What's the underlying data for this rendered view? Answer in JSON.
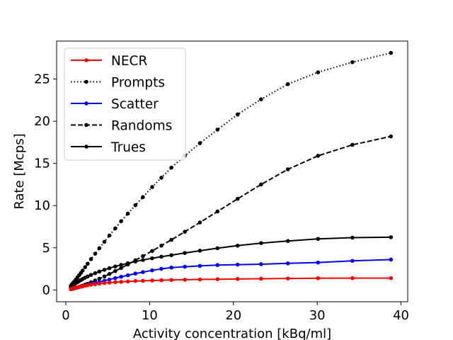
{
  "chart_data": {
    "type": "line",
    "title": "",
    "xlabel": "Activity concentration [kBq/ml]",
    "ylabel": "Rate [Mcps]",
    "xlim": [
      -1.1,
      40.8
    ],
    "ylim": [
      -1.4,
      29.5
    ],
    "xticks": [
      "0",
      "10",
      "20",
      "30",
      "40"
    ],
    "yticks": [
      "0",
      "5",
      "10",
      "15",
      "20",
      "25"
    ],
    "grid": false,
    "legend_position": "top-left",
    "x": [
      0.6,
      0.7,
      0.8,
      0.9,
      1.0,
      1.2,
      1.4,
      1.6,
      1.8,
      2.0,
      2.3,
      2.6,
      3.0,
      3.5,
      4.0,
      4.6,
      5.2,
      5.9,
      6.6,
      7.4,
      8.3,
      9.2,
      10.3,
      11.4,
      12.6,
      14.2,
      16.0,
      18.1,
      20.5,
      23.3,
      26.5,
      30.1,
      34.2,
      38.8
    ],
    "series": [
      {
        "name": "NECR",
        "color": "#ff0000",
        "style": "solid",
        "values": [
          0.1,
          0.13,
          0.16,
          0.19,
          0.22,
          0.27,
          0.31,
          0.36,
          0.4,
          0.45,
          0.5,
          0.56,
          0.62,
          0.68,
          0.75,
          0.82,
          0.87,
          0.92,
          0.96,
          1.0,
          1.06,
          1.08,
          1.12,
          1.15,
          1.18,
          1.21,
          1.24,
          1.27,
          1.3,
          1.33,
          1.36,
          1.39,
          1.4,
          1.4
        ]
      },
      {
        "name": "Prompts",
        "color": "#000000",
        "style": "dotted",
        "values": [
          0.5,
          0.62,
          0.74,
          0.86,
          0.98,
          1.24,
          1.5,
          1.76,
          2.02,
          2.3,
          2.7,
          3.1,
          3.65,
          4.3,
          4.95,
          5.7,
          6.45,
          7.3,
          8.15,
          9.05,
          10.05,
          11.0,
          12.2,
          13.3,
          14.5,
          15.9,
          17.4,
          19.0,
          20.8,
          22.6,
          24.4,
          25.8,
          27.0,
          28.1
        ]
      },
      {
        "name": "Scatter",
        "color": "#0000ff",
        "style": "solid",
        "values": [
          0.1,
          0.12,
          0.14,
          0.17,
          0.19,
          0.24,
          0.29,
          0.34,
          0.39,
          0.44,
          0.52,
          0.59,
          0.69,
          0.82,
          0.94,
          1.09,
          1.23,
          1.4,
          1.56,
          1.74,
          1.94,
          2.11,
          2.32,
          2.5,
          2.65,
          2.75,
          2.85,
          2.95,
          3.0,
          3.05,
          3.15,
          3.25,
          3.45,
          3.6
        ]
      },
      {
        "name": "Randoms",
        "color": "#000000",
        "style": "dashed",
        "values": [
          0.1,
          0.12,
          0.14,
          0.17,
          0.2,
          0.25,
          0.31,
          0.37,
          0.44,
          0.51,
          0.62,
          0.74,
          0.9,
          1.11,
          1.33,
          1.6,
          1.89,
          2.24,
          2.6,
          3.02,
          3.52,
          4.01,
          4.62,
          5.25,
          5.94,
          6.9,
          8.0,
          9.3,
          10.8,
          12.5,
          14.3,
          15.9,
          17.2,
          18.2
        ]
      },
      {
        "name": "Trues",
        "color": "#000000",
        "style": "solid",
        "values": [
          0.35,
          0.43,
          0.51,
          0.59,
          0.66,
          0.8,
          0.93,
          1.06,
          1.18,
          1.29,
          1.45,
          1.6,
          1.78,
          1.99,
          2.18,
          2.39,
          2.58,
          2.78,
          2.97,
          3.16,
          3.36,
          3.55,
          3.75,
          3.94,
          4.12,
          4.38,
          4.65,
          4.95,
          5.25,
          5.55,
          5.8,
          6.05,
          6.2,
          6.25
        ]
      }
    ]
  }
}
